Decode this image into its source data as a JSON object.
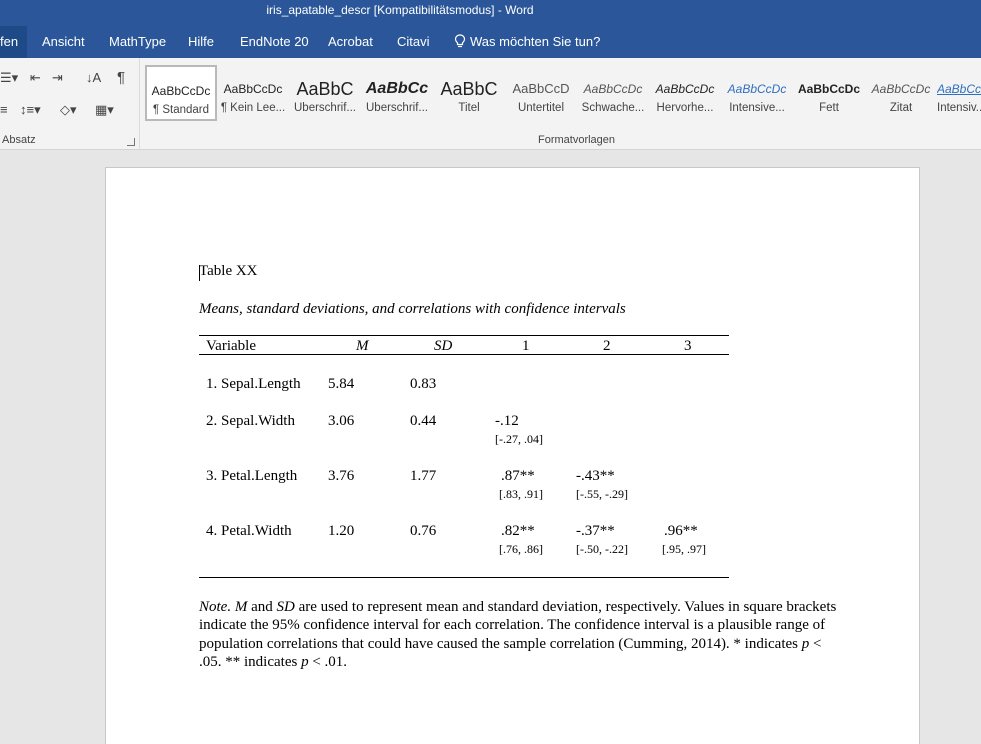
{
  "window": {
    "title": "iris_apatable_descr [Kompatibilitätsmodus]  -  Word"
  },
  "tabs": [
    {
      "label": "fen"
    },
    {
      "label": "Ansicht"
    },
    {
      "label": "MathType"
    },
    {
      "label": "Hilfe"
    },
    {
      "label": "EndNote 20"
    },
    {
      "label": "Acrobat"
    },
    {
      "label": "Citavi"
    }
  ],
  "tellme": {
    "label": "Was möchten Sie tun?",
    "icon": "lightbulb-icon"
  },
  "ribbon": {
    "paragraph_group_label": "Absatz",
    "styles_group_label": "Formatvorlagen",
    "pilcrow": "¶",
    "styles": [
      {
        "sample": "AaBbCcDc",
        "name": "¶ Standard"
      },
      {
        "sample": "AaBbCcDc",
        "name": "¶ Kein Lee..."
      },
      {
        "sample": "AaBbC",
        "name": "Überschrif..."
      },
      {
        "sample": "AaBbCc",
        "name": "Überschrif..."
      },
      {
        "sample": "AaBbC",
        "name": "Titel"
      },
      {
        "sample": "AaBbCcD",
        "name": "Untertitel"
      },
      {
        "sample": "AaBbCcDc",
        "name": "Schwache..."
      },
      {
        "sample": "AaBbCcDc",
        "name": "Hervorhe..."
      },
      {
        "sample": "AaBbCcDc",
        "name": "Intensive..."
      },
      {
        "sample": "AaBbCcDc",
        "name": "Fett"
      },
      {
        "sample": "AaBbCcDc",
        "name": "Zitat"
      },
      {
        "sample": "AaBbCc",
        "name": "Intensiv..."
      }
    ]
  },
  "document": {
    "table_label": "Table XX",
    "table_caption": "Means, standard deviations, and correlations with confidence intervals",
    "headers": {
      "variable": "Variable",
      "m": "M",
      "sd": "SD",
      "c1": "1",
      "c2": "2",
      "c3": "3"
    },
    "rows": [
      {
        "variable": "1. Sepal.Length",
        "m": "5.84",
        "sd": "0.83"
      },
      {
        "variable": "2. Sepal.Width",
        "m": "3.06",
        "sd": "0.44",
        "c1": "-.12",
        "c1_ci": "[-.27, .04]"
      },
      {
        "variable": "3. Petal.Length",
        "m": "3.76",
        "sd": "1.77",
        "c1": ".87**",
        "c1_ci": "[.83, .91]",
        "c2": "-.43**",
        "c2_ci": "[-.55, -.29]"
      },
      {
        "variable": "4. Petal.Width",
        "m": "1.20",
        "sd": "0.76",
        "c1": ".82**",
        "c1_ci": "[.76, .86]",
        "c2": "-.37**",
        "c2_ci": "[-.50, -.22]",
        "c3": ".96**",
        "c3_ci": "[.95, .97]"
      }
    ],
    "note": {
      "prefix": "Note.",
      "m": "M",
      "and": " and ",
      "sd": "SD",
      "text1": " are used to represent mean and standard deviation, respectively. Values in square brackets indicate the 95% confidence interval for each correlation. The confidence interval is a plausible range of population correlations that could have caused the sample correlation (Cumming, 2014). * indicates ",
      "p1": "p",
      "text2": " < .05. ** indicates ",
      "p2": "p",
      "text3": " < .01."
    }
  }
}
